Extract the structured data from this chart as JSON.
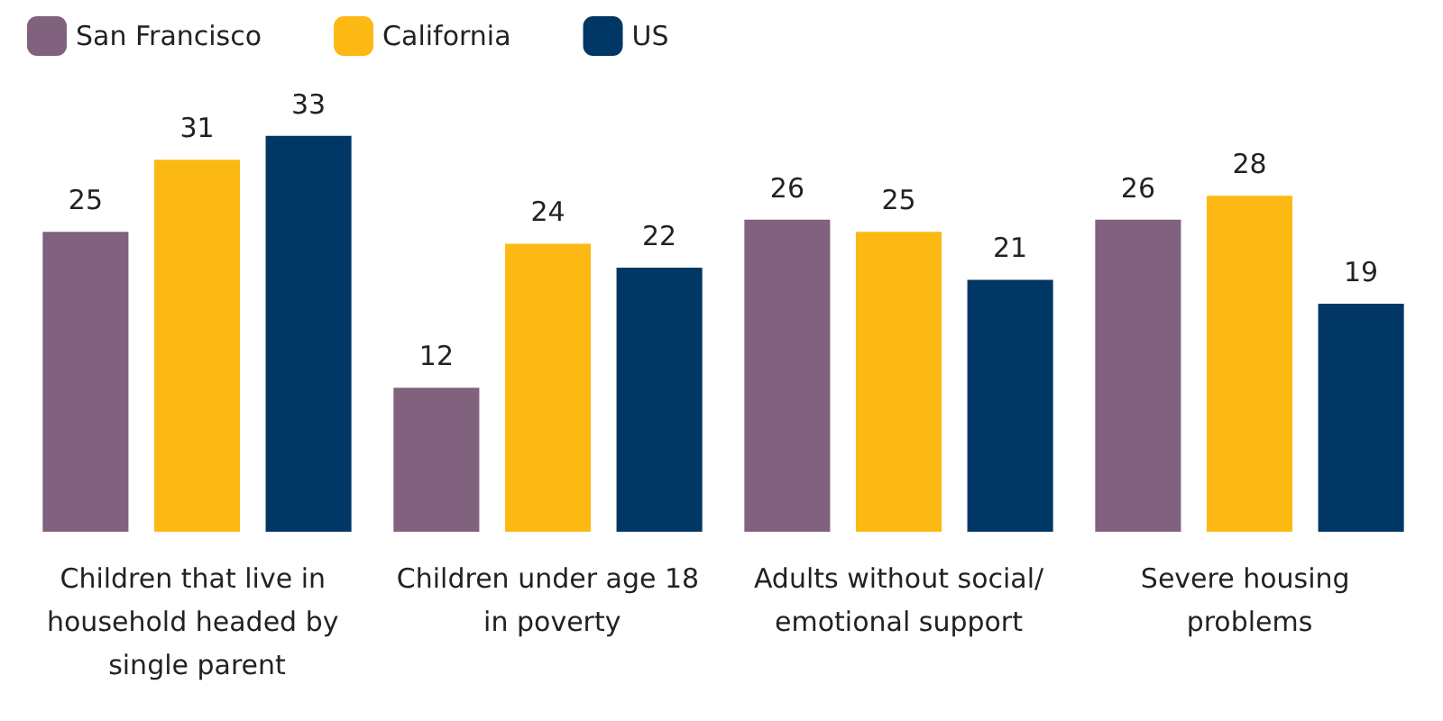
{
  "chart_data": {
    "type": "bar",
    "categories": [
      "Children that live in household headed by single parent",
      "Children under age 18 in poverty",
      "Adults without social/emotional support",
      "Severe housing problems"
    ],
    "series": [
      {
        "name": "San Francisco",
        "color": "#80617e",
        "values": [
          25,
          12,
          26,
          26
        ]
      },
      {
        "name": "California",
        "color": "#fdb913",
        "values": [
          31,
          24,
          25,
          28
        ]
      },
      {
        "name": "US",
        "color": "#003764",
        "values": [
          33,
          22,
          21,
          19
        ]
      }
    ],
    "data_labels": true,
    "legend": "top left",
    "grid": false
  }
}
